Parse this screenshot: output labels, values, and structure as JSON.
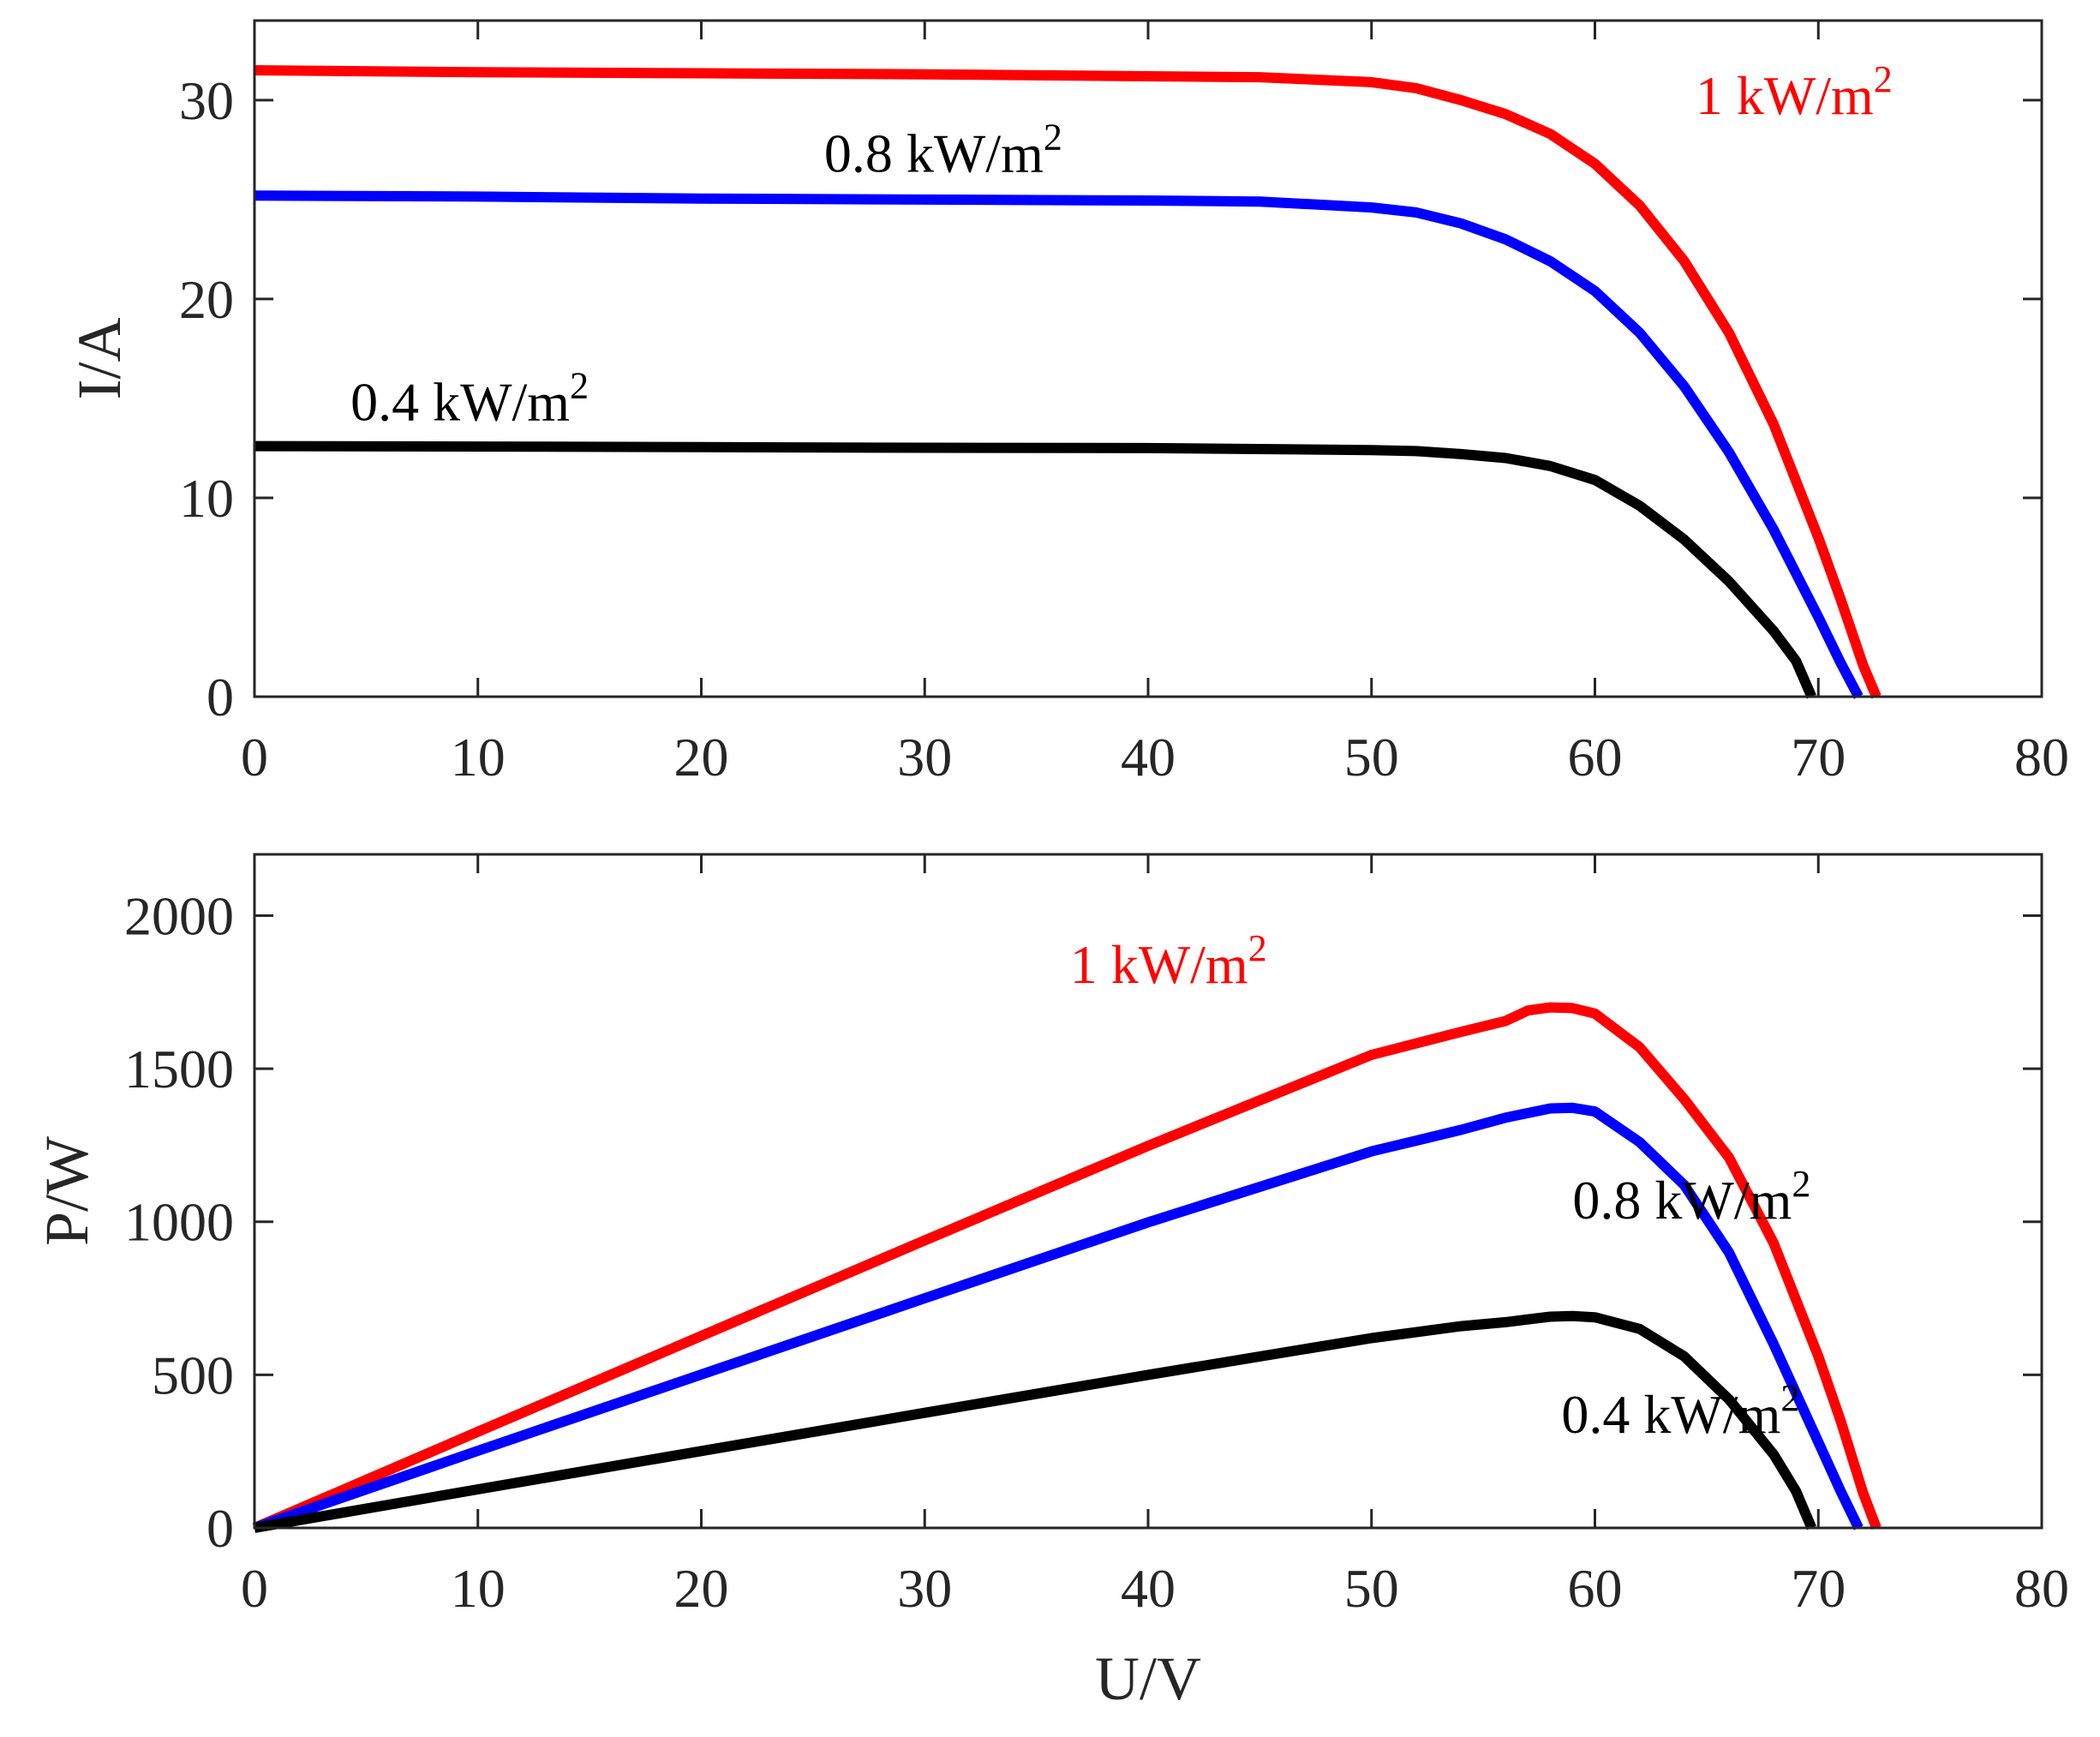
{
  "colors": {
    "red": "#ff0000",
    "blue": "#0000ff",
    "black": "#000000",
    "axis": "#262626"
  },
  "chart_data": [
    {
      "type": "line",
      "title": "",
      "xlabel": "",
      "ylabel": "I/A",
      "xlim": [
        0,
        80
      ],
      "ylim": [
        0,
        34
      ],
      "xticks": [
        "0",
        "10",
        "20",
        "30",
        "40",
        "50",
        "60",
        "70",
        "80"
      ],
      "yticks": [
        "0",
        "10",
        "20",
        "30"
      ],
      "grid": false,
      "series": [
        {
          "name": "1 kW/m2",
          "color": "#ff0000",
          "x": [
            0,
            10,
            20,
            30,
            40,
            45,
            50,
            52,
            54,
            56,
            58,
            60,
            62,
            64,
            66,
            68,
            70,
            71,
            72,
            72.6
          ],
          "y": [
            31.5,
            31.4,
            31.35,
            31.3,
            31.2,
            31.15,
            30.9,
            30.6,
            30.0,
            29.3,
            28.3,
            26.8,
            24.7,
            21.9,
            18.3,
            13.7,
            8.0,
            4.9,
            1.6,
            0
          ]
        },
        {
          "name": "0.8 kW/m2",
          "color": "#0000ff",
          "x": [
            0,
            10,
            20,
            30,
            40,
            45,
            50,
            52,
            54,
            56,
            58,
            60,
            62,
            64,
            66,
            68,
            70,
            71,
            71.8
          ],
          "y": [
            25.2,
            25.15,
            25.05,
            25.0,
            24.95,
            24.9,
            24.6,
            24.35,
            23.8,
            23.0,
            21.9,
            20.4,
            18.3,
            15.6,
            12.3,
            8.4,
            4.0,
            1.7,
            0
          ]
        },
        {
          "name": "0.4 kW/m2",
          "color": "#000000",
          "x": [
            0,
            10,
            20,
            30,
            40,
            50,
            52,
            54,
            56,
            58,
            60,
            62,
            64,
            66,
            68,
            69,
            69.7
          ],
          "y": [
            12.6,
            12.58,
            12.55,
            12.52,
            12.5,
            12.4,
            12.35,
            12.2,
            12.0,
            11.6,
            10.9,
            9.6,
            7.9,
            5.8,
            3.3,
            1.8,
            0
          ]
        }
      ],
      "annotations": [
        {
          "text": "1 kW/m",
          "sup": "2",
          "x": 64.5,
          "y": 29.3,
          "color": "#ff0000"
        },
        {
          "text": "0.8 kW/m",
          "sup": "2",
          "x": 25.5,
          "y": 26.4,
          "color": "#000000"
        },
        {
          "text": "0.4 kW/m",
          "sup": "2",
          "x": 4.3,
          "y": 13.9,
          "color": "#000000"
        }
      ]
    },
    {
      "type": "line",
      "title": "",
      "xlabel": "U/V",
      "ylabel": "P/W",
      "xlim": [
        0,
        80
      ],
      "ylim": [
        0,
        2200
      ],
      "xticks": [
        "0",
        "10",
        "20",
        "30",
        "40",
        "50",
        "60",
        "70",
        "80"
      ],
      "yticks": [
        "0",
        "500",
        "1000",
        "1500",
        "2000"
      ],
      "grid": false,
      "series": [
        {
          "name": "1 kW/m2",
          "color": "#ff0000",
          "x": [
            0,
            10,
            20,
            30,
            40,
            50,
            54,
            56,
            57,
            58,
            59,
            60,
            62,
            64,
            66,
            68,
            70,
            71,
            72,
            72.6
          ],
          "y": [
            0,
            314,
            627,
            939,
            1248,
            1545,
            1620,
            1656,
            1690,
            1700,
            1698,
            1680,
            1570,
            1400,
            1210,
            930,
            560,
            350,
            115,
            0
          ]
        },
        {
          "name": "0.8 kW/m2",
          "color": "#0000ff",
          "x": [
            0,
            10,
            20,
            30,
            40,
            50,
            54,
            56,
            58,
            59,
            60,
            62,
            64,
            66,
            68,
            70,
            71,
            71.8
          ],
          "y": [
            0,
            252,
            501,
            750,
            998,
            1230,
            1300,
            1340,
            1370,
            1372,
            1360,
            1260,
            1120,
            900,
            600,
            280,
            120,
            0
          ]
        },
        {
          "name": "0.4 kW/m2",
          "color": "#000000",
          "x": [
            0,
            10,
            20,
            30,
            40,
            50,
            54,
            56,
            58,
            59,
            60,
            62,
            64,
            66,
            68,
            69,
            69.7
          ],
          "y": [
            0,
            126,
            251,
            376,
            500,
            620,
            659,
            672,
            690,
            692,
            688,
            650,
            560,
            420,
            240,
            120,
            0
          ]
        }
      ],
      "annotations": [
        {
          "text": "1 kW/m",
          "sup": "2",
          "x": 36.5,
          "y": 1780,
          "color": "#ff0000"
        },
        {
          "text": "0.8 kW/m",
          "sup": "2",
          "x": 59,
          "y": 1010,
          "color": "#000000"
        },
        {
          "text": "0.4 kW/m",
          "sup": "2",
          "x": 58.5,
          "y": 310,
          "color": "#000000"
        }
      ]
    }
  ]
}
